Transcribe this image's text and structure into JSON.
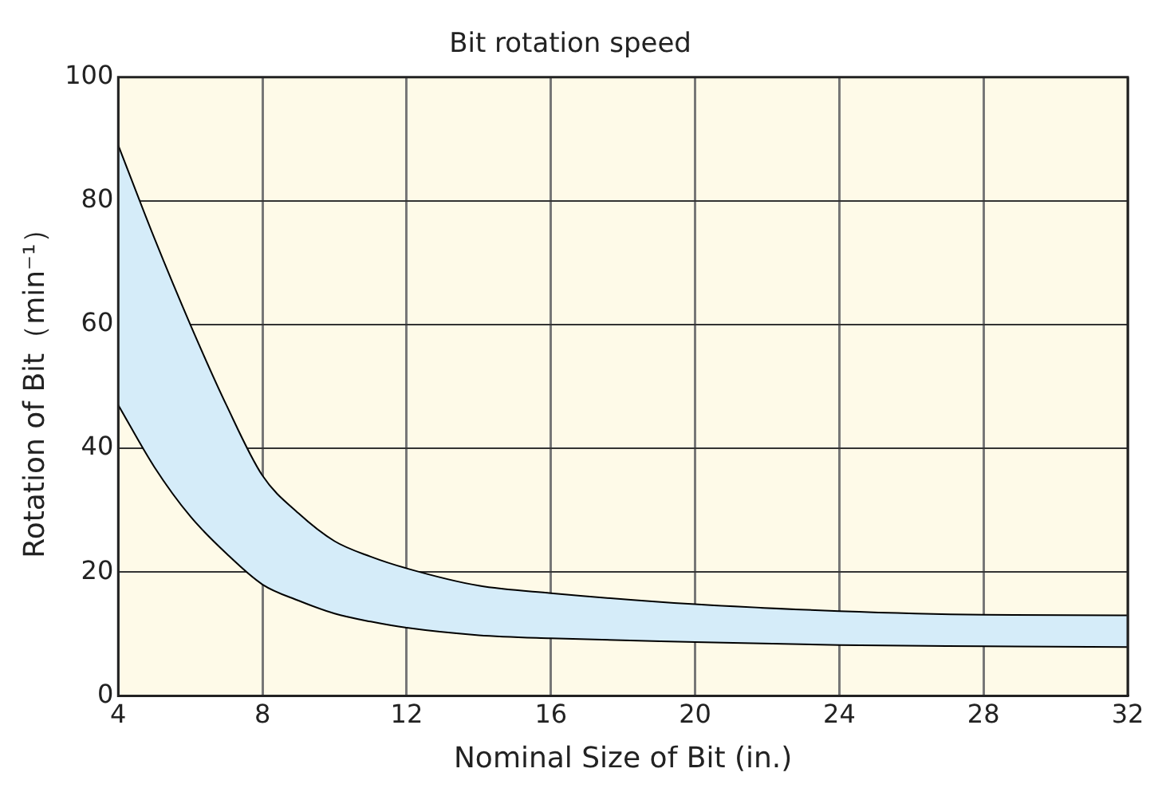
{
  "chart_data": {
    "type": "area",
    "title": "Bit rotation speed",
    "xlabel": "Nominal Size of Bit (in.)",
    "ylabel": "Rotation of Bit（min⁻¹）",
    "x": [
      4,
      5,
      6,
      7,
      8,
      9,
      10,
      11,
      12,
      14,
      16,
      20,
      24,
      28,
      32
    ],
    "series": [
      {
        "type": "line",
        "color": "#000000",
        "values": [
          47,
          37,
          29,
          23,
          18,
          15.4,
          13.3,
          12,
          11,
          9.8,
          9.3,
          8.7,
          8.2,
          8,
          7.9
        ]
      },
      {
        "color": "#d5ecf9",
        "values": [
          89,
          74,
          60,
          47,
          35.6,
          29.5,
          25,
          22.5,
          20.6,
          17.8,
          16.6,
          14.8,
          13.7,
          13.1,
          13
        ]
      }
    ],
    "xlim": [
      4,
      32
    ],
    "xticks": [
      4,
      8,
      12,
      16,
      20,
      24,
      28,
      32
    ],
    "ylim": [
      0,
      100
    ],
    "yticks": [
      0,
      20,
      40,
      60,
      80,
      100
    ],
    "grid": true,
    "legend": false
  }
}
